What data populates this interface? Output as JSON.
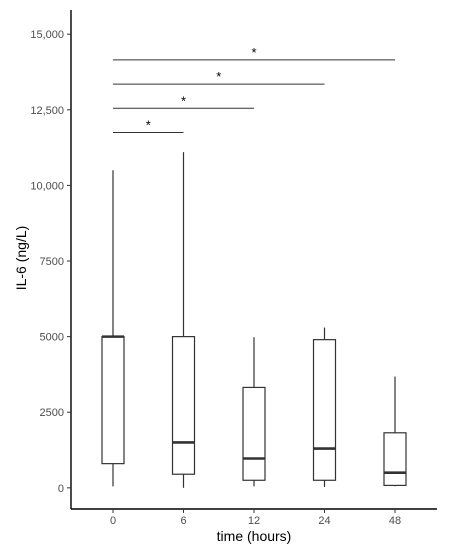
{
  "chart_data": {
    "type": "boxplot",
    "xlabel": "time (hours)",
    "ylabel": "IL-6 (ng/L)",
    "categories": [
      "0",
      "6",
      "12",
      "24",
      "48"
    ],
    "ylim": [
      -700,
      15800
    ],
    "yticks": [
      {
        "value": 0,
        "label": "0"
      },
      {
        "value": 2500,
        "label": "2500"
      },
      {
        "value": 5000,
        "label": "5000"
      },
      {
        "value": 7500,
        "label": "7500"
      },
      {
        "value": 10000,
        "label": "10,000"
      },
      {
        "value": 12500,
        "label": "12,500"
      },
      {
        "value": 15000,
        "label": "15,000"
      }
    ],
    "boxes": [
      {
        "category": "0",
        "min": 50,
        "q1": 800,
        "median": 5000,
        "q3": 5000,
        "max": 10500
      },
      {
        "category": "6",
        "min": 0,
        "q1": 450,
        "median": 1500,
        "q3": 5000,
        "max": 11100
      },
      {
        "category": "12",
        "min": 50,
        "q1": 250,
        "median": 970,
        "q3": 3320,
        "max": 4980
      },
      {
        "category": "24",
        "min": 30,
        "q1": 250,
        "median": 1300,
        "q3": 4900,
        "max": 5300
      },
      {
        "category": "48",
        "min": 50,
        "q1": 80,
        "median": 500,
        "q3": 1820,
        "max": 3680
      }
    ],
    "significance": [
      {
        "from": "0",
        "to": "6",
        "y": 11750,
        "label": "*"
      },
      {
        "from": "0",
        "to": "12",
        "y": 12550,
        "label": "*"
      },
      {
        "from": "0",
        "to": "24",
        "y": 13350,
        "label": "*"
      },
      {
        "from": "0",
        "to": "48",
        "y": 14150,
        "label": "*"
      }
    ],
    "grid": false,
    "legend": "none"
  }
}
